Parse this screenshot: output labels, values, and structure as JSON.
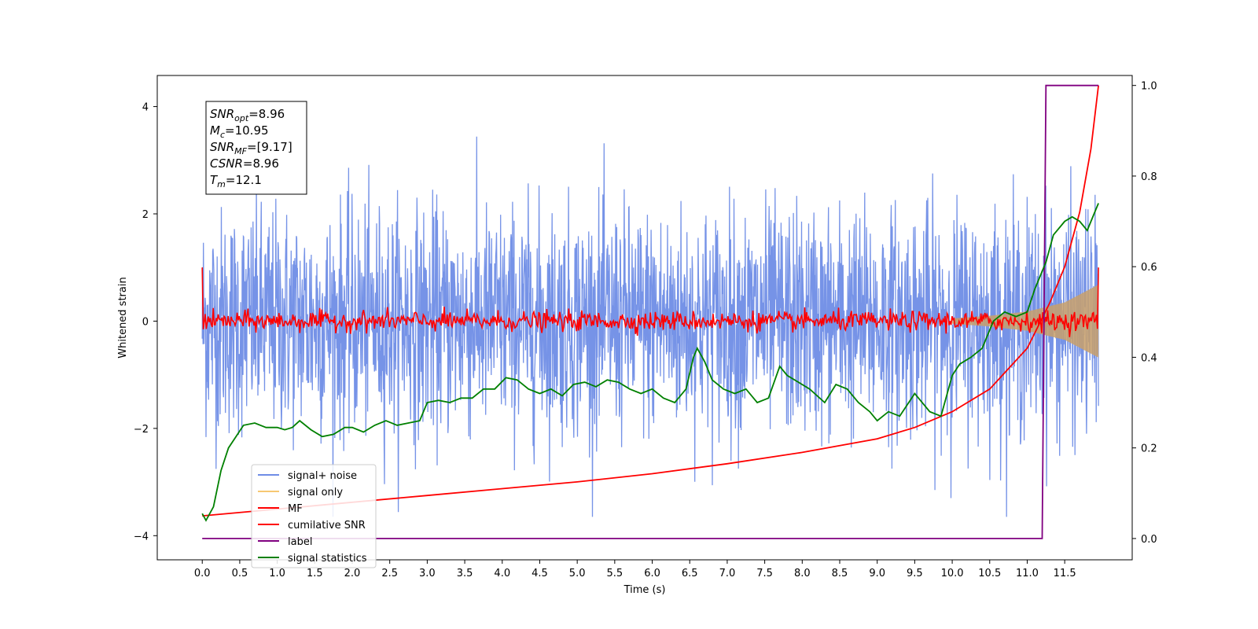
{
  "chart_data": {
    "type": "line",
    "xlabel": "Time (s)",
    "ylabel": "Whitened strain",
    "xlim": [
      -0.6,
      12.4
    ],
    "ylim": [
      -4.45,
      4.58
    ],
    "y2lim": [
      -0.047,
      1.022
    ],
    "x_ticks": [
      "0.0",
      "0.5",
      "1.0",
      "1.5",
      "2.0",
      "2.5",
      "3.0",
      "3.5",
      "4.0",
      "4.5",
      "5.0",
      "5.5",
      "6.0",
      "6.5",
      "7.0",
      "7.5",
      "8.0",
      "8.5",
      "9.0",
      "9.5",
      "10.0",
      "10.5",
      "11.0",
      "11.5"
    ],
    "y_ticks": [
      "−4",
      "−2",
      "0",
      "2",
      "4"
    ],
    "y2_ticks": [
      "0.0",
      "0.2",
      "0.4",
      "0.6",
      "0.8",
      "1.0"
    ],
    "grid": false,
    "legend_position": "lower-left",
    "stats_box": [
      {
        "sym": "SNR",
        "sub": "opt",
        "value": "=8.96"
      },
      {
        "sym": "M",
        "sub": "c",
        "value": "=10.95"
      },
      {
        "sym": "SNR",
        "sub": "MF",
        "value": "=[9.17]"
      },
      {
        "sym": "CSNR",
        "sub": "",
        "value": "=8.96"
      },
      {
        "sym": "T",
        "sub": "m",
        "value": "=12.1"
      }
    ],
    "series": [
      {
        "name": "signal+ noise",
        "color": "#6f8de6",
        "axis": "left",
        "description": "whitened noise around 0 with amplitude ~ -3.6 to 4.1",
        "x_range": [
          0.0,
          11.95
        ]
      },
      {
        "name": "signal only",
        "color": "#f7c873",
        "axis": "left",
        "envelope": {
          "x": [
            10.0,
            10.5,
            11.0,
            11.5,
            11.95
          ],
          "amp": [
            0.05,
            0.1,
            0.18,
            0.35,
            0.68
          ]
        }
      },
      {
        "name": "MF",
        "color": "#ff0000",
        "axis": "left",
        "description": "oscillation around 0 with amplitude ~ 0.15, starting at 1.0",
        "x_range": [
          0.0,
          11.95
        ]
      },
      {
        "name": "cumilative SNR",
        "color": "#ff0000",
        "axis": "right",
        "x": [
          0.0,
          1.0,
          2.0,
          3.0,
          4.0,
          5.0,
          6.0,
          7.0,
          8.0,
          9.0,
          9.5,
          10.0,
          10.5,
          11.0,
          11.3,
          11.5,
          11.7,
          11.85,
          11.95
        ],
        "y": [
          0.05,
          0.065,
          0.08,
          0.095,
          0.11,
          0.125,
          0.143,
          0.165,
          0.19,
          0.22,
          0.245,
          0.28,
          0.33,
          0.42,
          0.52,
          0.6,
          0.72,
          0.86,
          1.0
        ]
      },
      {
        "name": "label",
        "color": "#800080",
        "axis": "right",
        "x": [
          0.0,
          11.2,
          11.25,
          11.95
        ],
        "y": [
          0.0,
          0.0,
          1.0,
          1.0
        ]
      },
      {
        "name": "signal statistics",
        "color": "#008000",
        "axis": "right",
        "x": [
          0.0,
          0.05,
          0.15,
          0.25,
          0.35,
          0.45,
          0.55,
          0.7,
          0.85,
          1.0,
          1.1,
          1.2,
          1.3,
          1.45,
          1.6,
          1.75,
          1.9,
          2.0,
          2.15,
          2.3,
          2.45,
          2.6,
          2.75,
          2.9,
          3.0,
          3.15,
          3.3,
          3.45,
          3.6,
          3.75,
          3.9,
          4.05,
          4.2,
          4.35,
          4.5,
          4.65,
          4.8,
          4.95,
          5.1,
          5.25,
          5.4,
          5.55,
          5.7,
          5.85,
          6.0,
          6.15,
          6.3,
          6.45,
          6.55,
          6.6,
          6.7,
          6.8,
          6.95,
          7.1,
          7.25,
          7.4,
          7.55,
          7.7,
          7.8,
          7.95,
          8.1,
          8.3,
          8.45,
          8.6,
          8.75,
          8.9,
          9.0,
          9.15,
          9.3,
          9.5,
          9.7,
          9.85,
          10.0,
          10.1,
          10.25,
          10.4,
          10.55,
          10.7,
          10.85,
          11.0,
          11.1,
          11.25,
          11.35,
          11.5,
          11.6,
          11.7,
          11.8,
          11.9,
          11.95
        ],
        "y": [
          0.055,
          0.04,
          0.07,
          0.15,
          0.2,
          0.225,
          0.25,
          0.255,
          0.245,
          0.245,
          0.24,
          0.245,
          0.26,
          0.24,
          0.225,
          0.23,
          0.245,
          0.245,
          0.235,
          0.25,
          0.26,
          0.25,
          0.255,
          0.26,
          0.3,
          0.305,
          0.3,
          0.31,
          0.31,
          0.33,
          0.33,
          0.355,
          0.35,
          0.33,
          0.32,
          0.33,
          0.315,
          0.34,
          0.345,
          0.335,
          0.35,
          0.345,
          0.33,
          0.32,
          0.33,
          0.31,
          0.3,
          0.33,
          0.4,
          0.42,
          0.39,
          0.35,
          0.33,
          0.32,
          0.33,
          0.3,
          0.31,
          0.38,
          0.36,
          0.345,
          0.33,
          0.3,
          0.34,
          0.33,
          0.3,
          0.28,
          0.26,
          0.28,
          0.27,
          0.32,
          0.28,
          0.27,
          0.36,
          0.385,
          0.4,
          0.42,
          0.48,
          0.5,
          0.49,
          0.5,
          0.55,
          0.61,
          0.67,
          0.7,
          0.71,
          0.7,
          0.68,
          0.72,
          0.74
        ]
      }
    ]
  }
}
